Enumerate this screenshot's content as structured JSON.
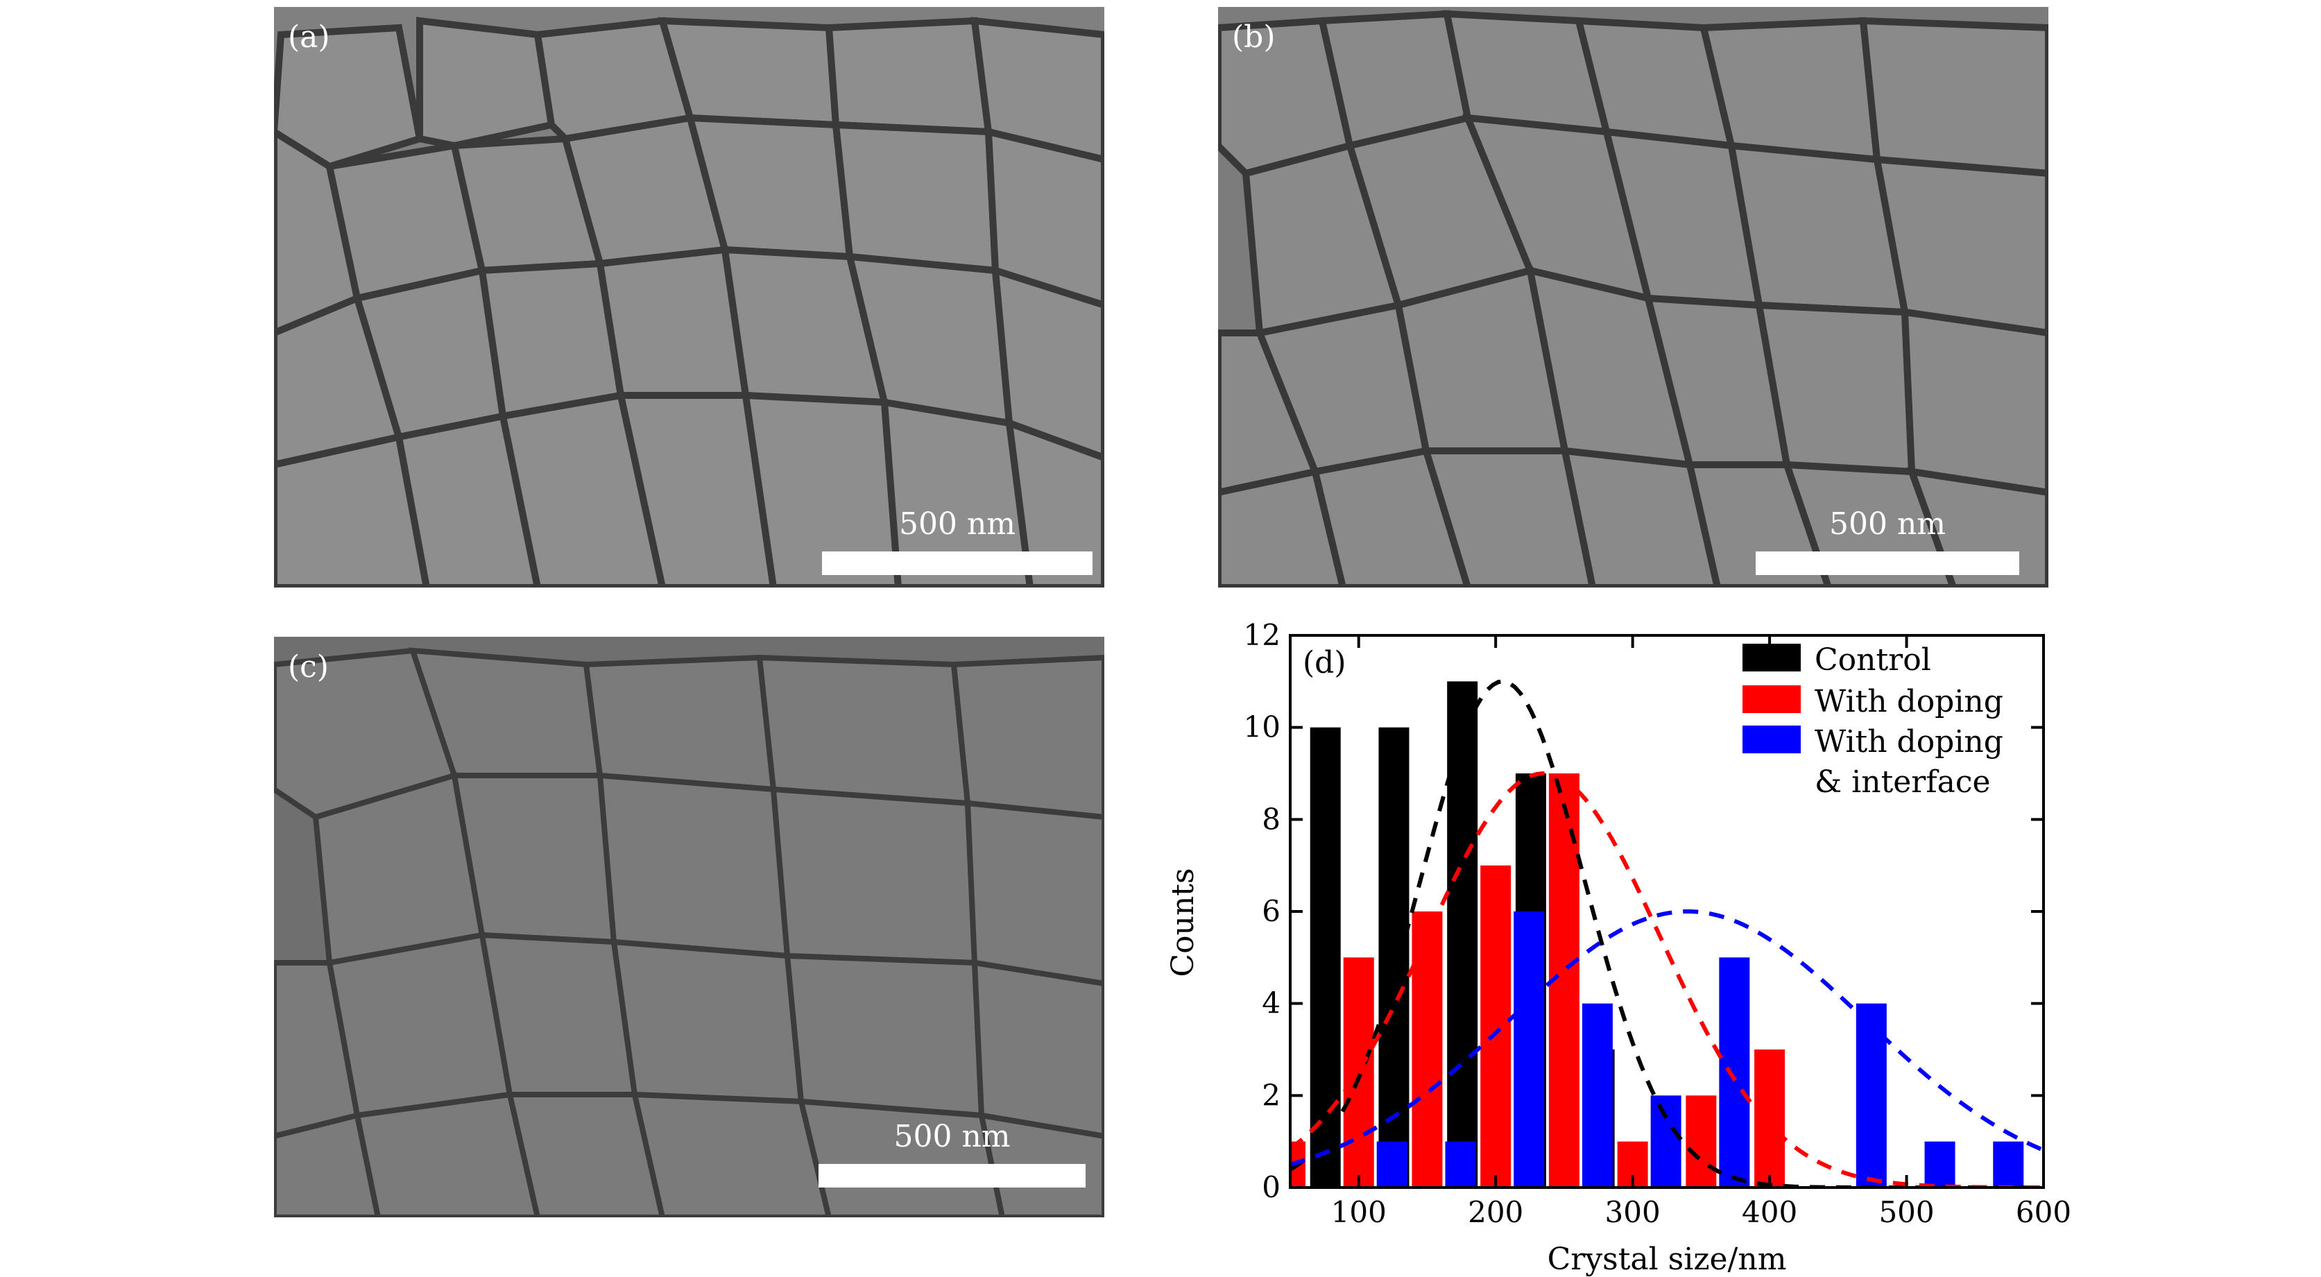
{
  "panels": [
    {
      "label": "(a)",
      "scale": "500 nm"
    },
    {
      "label": "(b)",
      "scale": "500 nm"
    },
    {
      "label": "(c)",
      "scale": "500 nm"
    }
  ],
  "chart_data": {
    "type": "bar",
    "panel_label": "(d)",
    "xlabel": "Crystal size/nm",
    "ylabel": "Counts",
    "xlim": [
      50,
      600
    ],
    "ylim": [
      0,
      12
    ],
    "xticks": [
      100,
      200,
      300,
      400,
      500,
      600
    ],
    "yticks": [
      0,
      2,
      4,
      6,
      8,
      10,
      12
    ],
    "bin_centers": [
      50,
      100,
      150,
      200,
      250,
      300,
      350,
      400,
      450,
      500,
      550,
      600
    ],
    "series": [
      {
        "name": "Control",
        "color": "#000000",
        "values": [
          4,
          10,
          10,
          11,
          9,
          3,
          0,
          0,
          0,
          0,
          0,
          0
        ]
      },
      {
        "name": "With doping",
        "color": "#ff0000",
        "values": [
          1,
          5,
          6,
          7,
          9,
          1,
          2,
          3,
          0,
          0,
          0,
          0
        ]
      },
      {
        "name": "With doping\n& interface",
        "color": "#0000ff",
        "values": [
          0,
          1,
          1,
          6,
          4,
          2,
          5,
          0,
          4,
          1,
          1,
          0
        ]
      }
    ],
    "legend": {
      "placement": "top-right",
      "entries": [
        "Control",
        "With doping",
        "With doping",
        "& interface"
      ]
    },
    "fits": [
      {
        "color": "#000000",
        "mean": 205,
        "sigma": 60,
        "amp": 11
      },
      {
        "color": "#ff0000",
        "mean": 235,
        "sigma": 85,
        "amp": 9
      },
      {
        "color": "#0000ff",
        "mean": 340,
        "sigma": 130,
        "amp": 6
      }
    ]
  }
}
